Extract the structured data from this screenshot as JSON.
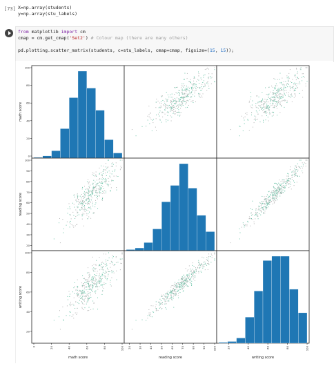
{
  "cell1": {
    "prompt": "[73]",
    "lines": [
      "X=np.array(students)",
      "y=np.array(stu_labels)"
    ]
  },
  "cell2": {
    "line1_kw1": "from",
    "line1_mod": " matplotlib ",
    "line1_kw2": "import",
    "line1_name": " cm",
    "line2_a": "cmap = cm.get_cmap(",
    "line2_str": "'Set2'",
    "line2_b": ") ",
    "line2_com": "# Colour map (there are many others)",
    "line3_a": "pd.plotting.scatter_matrix(students, c=stu_labels, cmap=cmap, figsize=(",
    "line3_n1": "15",
    "line3_sep": ", ",
    "line3_n2": "15",
    "line3_b": "));"
  },
  "colors": {
    "hist": "#1f77b4",
    "teal": "#66c2a5",
    "grey": "#b3b3b3"
  },
  "chart_data": {
    "type": "scatter_matrix",
    "variables": [
      "math score",
      "reading score",
      "writing score"
    ],
    "ticks": {
      "math score": [
        0,
        20,
        40,
        60,
        80,
        100
      ],
      "reading score": [
        20,
        30,
        40,
        50,
        60,
        70,
        80,
        90,
        100
      ],
      "writing score": [
        20,
        40,
        60,
        80,
        100
      ]
    },
    "ranges": {
      "math score": [
        0,
        100
      ],
      "reading score": [
        17,
        100
      ],
      "writing score": [
        10,
        100
      ]
    },
    "histograms": {
      "math score": {
        "edges": [
          0,
          10,
          20,
          30,
          40,
          50,
          60,
          70,
          80,
          90,
          100
        ],
        "counts": [
          1,
          3,
          10,
          40,
          82,
          118,
          95,
          65,
          25,
          7
        ]
      },
      "reading score": {
        "edges": [
          17,
          25.3,
          33.6,
          41.9,
          50.2,
          58.5,
          66.8,
          75.1,
          83.4,
          91.7,
          100
        ],
        "counts": [
          2,
          5,
          15,
          40,
          90,
          120,
          160,
          115,
          65,
          35
        ]
      },
      "writing score": {
        "edges": [
          10,
          19,
          28,
          37,
          46,
          55,
          64,
          73,
          82,
          91,
          100
        ],
        "counts": [
          1,
          2,
          6,
          30,
          60,
          95,
          100,
          100,
          62,
          35
        ]
      }
    },
    "point_series": [
      "teal",
      "grey"
    ]
  }
}
